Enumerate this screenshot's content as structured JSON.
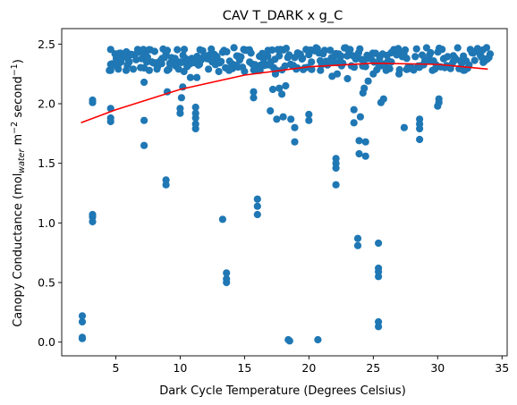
{
  "chart_data": {
    "type": "scatter",
    "title": "CAV T_DARK x g_C",
    "xlabel": "Dark Cycle Temperature (Degrees Celsius)",
    "ylabel": {
      "main": "Canopy Conductance (mol",
      "sub": "water",
      "mid": " m",
      "sup1": "−2",
      "mid2": " second",
      "sup2": "−1",
      "end": ")"
    },
    "xlim": [
      0.8,
      35.4
    ],
    "ylim": [
      -0.115,
      2.63
    ],
    "xticks": [
      5,
      10,
      15,
      20,
      25,
      30,
      35
    ],
    "yticks": [
      0.0,
      0.5,
      1.0,
      1.5,
      2.0,
      2.5
    ],
    "grid": false,
    "legend": "none",
    "colors": {
      "points": "#1f77b4",
      "fit": "#ff0000"
    },
    "series": [
      {
        "type": "scatter",
        "points": [
          [
            2.4,
            0.04
          ],
          [
            2.4,
            0.03
          ],
          [
            2.4,
            0.17
          ],
          [
            2.4,
            0.22
          ],
          [
            3.2,
            1.01
          ],
          [
            3.2,
            1.05
          ],
          [
            3.2,
            1.07
          ],
          [
            3.2,
            2.03
          ],
          [
            3.2,
            2.01
          ],
          [
            4.6,
            1.85
          ],
          [
            4.6,
            1.88
          ],
          [
            4.6,
            1.96
          ],
          [
            4.6,
            2.28
          ],
          [
            4.6,
            2.33
          ],
          [
            5.2,
            2.29
          ],
          [
            5.2,
            2.33
          ],
          [
            5.4,
            2.35
          ],
          [
            5.8,
            2.28
          ],
          [
            5.9,
            2.32
          ],
          [
            6.0,
            2.36
          ],
          [
            7.2,
            1.65
          ],
          [
            7.2,
            1.86
          ],
          [
            7.2,
            2.18
          ],
          [
            7.2,
            2.3
          ],
          [
            7.4,
            2.35
          ],
          [
            7.6,
            2.28
          ],
          [
            8.0,
            2.34
          ],
          [
            8.2,
            2.29
          ],
          [
            8.6,
            2.38
          ],
          [
            8.9,
            1.32
          ],
          [
            8.9,
            1.36
          ],
          [
            9.0,
            2.1
          ],
          [
            9.0,
            2.28
          ],
          [
            9.2,
            2.34
          ],
          [
            9.6,
            2.38
          ],
          [
            10.0,
            1.92
          ],
          [
            10.0,
            1.96
          ],
          [
            10.1,
            2.05
          ],
          [
            10.2,
            2.14
          ],
          [
            10.3,
            2.27
          ],
          [
            10.5,
            2.35
          ],
          [
            10.8,
            2.22
          ],
          [
            10.9,
            2.38
          ],
          [
            11.2,
            1.79
          ],
          [
            11.2,
            1.83
          ],
          [
            11.2,
            1.88
          ],
          [
            11.2,
            1.92
          ],
          [
            11.2,
            1.97
          ],
          [
            11.3,
            2.22
          ],
          [
            11.5,
            2.33
          ],
          [
            11.9,
            2.4
          ],
          [
            12.2,
            2.29
          ],
          [
            12.5,
            2.35
          ],
          [
            12.8,
            2.4
          ],
          [
            13.0,
            2.27
          ],
          [
            13.3,
            1.03
          ],
          [
            13.6,
            0.5
          ],
          [
            13.6,
            0.53
          ],
          [
            13.6,
            0.58
          ],
          [
            13.8,
            2.28
          ],
          [
            14.1,
            2.33
          ],
          [
            14.5,
            2.4
          ],
          [
            15.0,
            2.27
          ],
          [
            15.4,
            2.35
          ],
          [
            15.7,
            2.05
          ],
          [
            15.7,
            2.1
          ],
          [
            16.0,
            1.07
          ],
          [
            16.0,
            1.14
          ],
          [
            16.0,
            1.2
          ],
          [
            16.2,
            2.28
          ],
          [
            16.5,
            2.32
          ],
          [
            16.8,
            2.4
          ],
          [
            17.0,
            1.94
          ],
          [
            17.2,
            2.12
          ],
          [
            17.4,
            2.25
          ],
          [
            17.5,
            1.87
          ],
          [
            17.7,
            2.13
          ],
          [
            17.9,
            2.08
          ],
          [
            18.0,
            1.89
          ],
          [
            18.2,
            2.15
          ],
          [
            18.4,
            0.02
          ],
          [
            18.5,
            0.01
          ],
          [
            18.6,
            1.87
          ],
          [
            18.9,
            1.68
          ],
          [
            18.9,
            1.8
          ],
          [
            19.1,
            2.3
          ],
          [
            19.5,
            2.38
          ],
          [
            20.0,
            1.86
          ],
          [
            20.0,
            1.91
          ],
          [
            20.2,
            2.35
          ],
          [
            20.7,
            0.02
          ],
          [
            20.9,
            2.28
          ],
          [
            21.5,
            2.35
          ],
          [
            21.8,
            2.23
          ],
          [
            22.1,
            1.32
          ],
          [
            22.1,
            1.46
          ],
          [
            22.1,
            1.5
          ],
          [
            22.1,
            1.54
          ],
          [
            22.2,
            2.25
          ],
          [
            22.5,
            2.4
          ],
          [
            23.0,
            2.21
          ],
          [
            23.5,
            1.95
          ],
          [
            23.5,
            1.84
          ],
          [
            23.8,
            0.81
          ],
          [
            23.8,
            0.87
          ],
          [
            23.9,
            1.58
          ],
          [
            23.9,
            1.69
          ],
          [
            24.0,
            1.89
          ],
          [
            24.2,
            2.09
          ],
          [
            24.3,
            2.13
          ],
          [
            24.4,
            1.56
          ],
          [
            24.4,
            1.68
          ],
          [
            24.6,
            2.19
          ],
          [
            25.0,
            2.25
          ],
          [
            25.4,
            0.13
          ],
          [
            25.4,
            0.17
          ],
          [
            25.4,
            0.55
          ],
          [
            25.4,
            0.59
          ],
          [
            25.4,
            0.62
          ],
          [
            25.4,
            0.83
          ],
          [
            25.6,
            2.01
          ],
          [
            25.8,
            2.04
          ],
          [
            26.0,
            2.28
          ],
          [
            26.4,
            2.35
          ],
          [
            27.0,
            2.25
          ],
          [
            27.4,
            1.8
          ],
          [
            27.6,
            2.38
          ],
          [
            28.0,
            2.3
          ],
          [
            28.6,
            1.7
          ],
          [
            28.6,
            1.79
          ],
          [
            28.6,
            1.83
          ],
          [
            28.6,
            1.87
          ],
          [
            29.0,
            2.35
          ],
          [
            29.6,
            2.28
          ],
          [
            30.0,
            1.98
          ],
          [
            30.1,
            2.01
          ],
          [
            30.1,
            2.04
          ],
          [
            30.5,
            2.38
          ],
          [
            31.2,
            2.35
          ],
          [
            32.0,
            2.4
          ],
          [
            33.5,
            2.45
          ],
          [
            33.8,
            2.47
          ]
        ],
        "band_min_x": 4.5,
        "band_max_x": 34.0,
        "band_low": 2.28,
        "band_high": 2.47
      },
      {
        "type": "line",
        "x": [
          2.3,
          5,
          10,
          15,
          20,
          25,
          30,
          33.9
        ],
        "y": [
          1.84,
          1.95,
          2.12,
          2.24,
          2.31,
          2.34,
          2.33,
          2.29
        ]
      }
    ]
  }
}
